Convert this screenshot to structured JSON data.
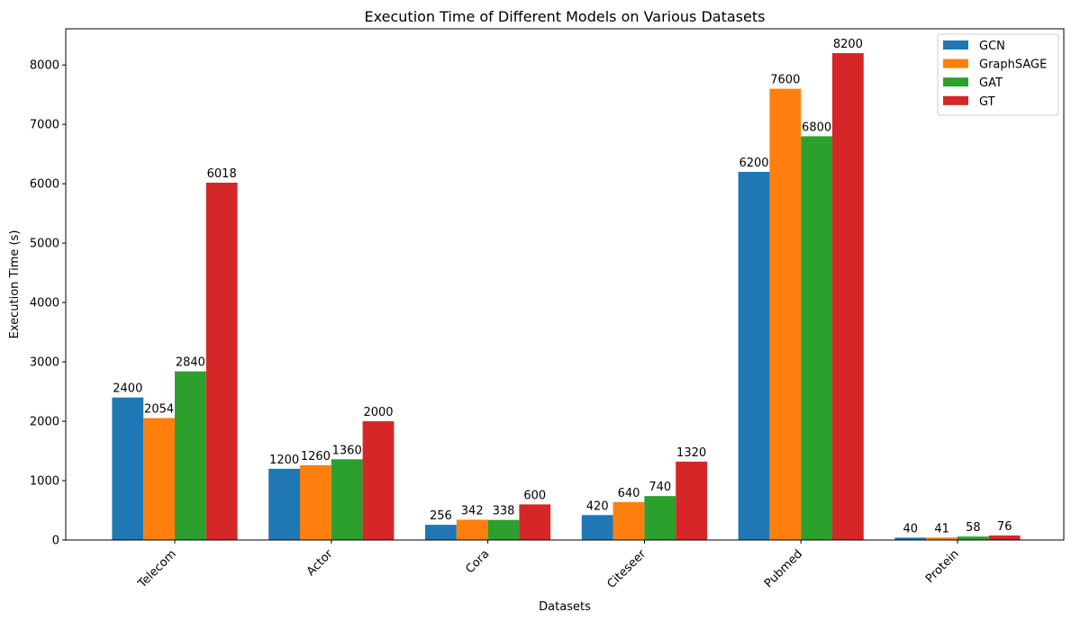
{
  "chart_data": {
    "type": "bar",
    "title": "Execution Time of Different Models on Various Datasets",
    "xlabel": "Datasets",
    "ylabel": "Execution Time (s)",
    "categories": [
      "Telecom",
      "Actor",
      "Cora",
      "Citeseer",
      "Pubmed",
      "Protein"
    ],
    "series": [
      {
        "name": "GCN",
        "color": "#1f77b4",
        "values": [
          2400,
          1200,
          256,
          420,
          6200,
          40
        ]
      },
      {
        "name": "GraphSAGE",
        "color": "#ff7f0e",
        "values": [
          2054,
          1260,
          342,
          640,
          7600,
          41
        ]
      },
      {
        "name": "GAT",
        "color": "#2ca02c",
        "values": [
          2840,
          1360,
          338,
          740,
          6800,
          58
        ]
      },
      {
        "name": "GT",
        "color": "#d62728",
        "values": [
          6018,
          2000,
          600,
          1320,
          8200,
          76
        ]
      }
    ],
    "ylim": [
      0,
      8610
    ],
    "yticks": [
      0,
      1000,
      2000,
      3000,
      4000,
      5000,
      6000,
      7000,
      8000
    ],
    "grid": false,
    "legend_position": "top-right"
  }
}
